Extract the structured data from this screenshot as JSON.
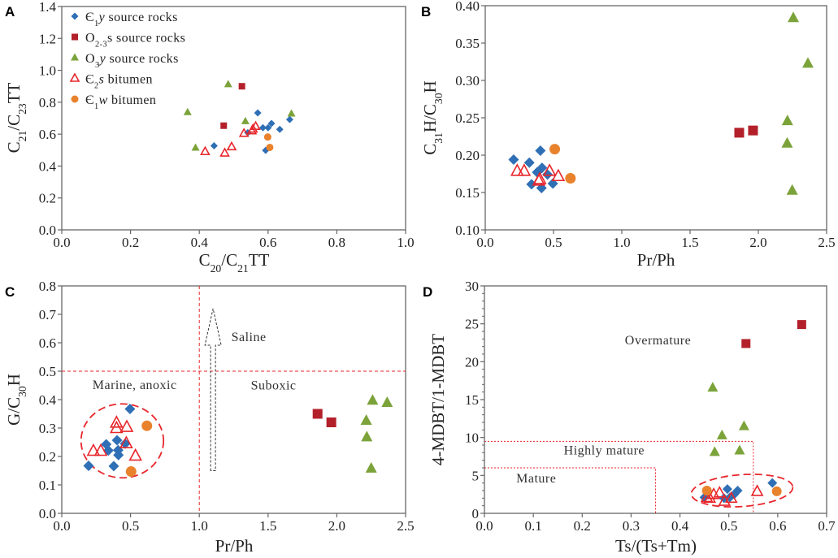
{
  "colors": {
    "E1y": "#2f6fb5",
    "O23s": "#b3202a",
    "O3y": "#7ba33a",
    "E2s": "#e8262b",
    "E1w": "#e9822c",
    "guide": "#e8262b",
    "axis": "#666666"
  },
  "legend": [
    {
      "key": "E1y",
      "marker": "diamond",
      "parts": [
        {
          "t": "Є"
        },
        {
          "t": "1",
          "sub": true
        },
        {
          "t": "y",
          "it": true
        },
        {
          "t": " source rocks"
        }
      ]
    },
    {
      "key": "O23s",
      "marker": "square",
      "parts": [
        {
          "t": "O"
        },
        {
          "t": "2-3",
          "sub": true
        },
        {
          "t": "s  source rocks"
        }
      ]
    },
    {
      "key": "O3y",
      "marker": "triangle",
      "parts": [
        {
          "t": "O"
        },
        {
          "t": "3",
          "sub": true
        },
        {
          "t": "y",
          "it": true
        },
        {
          "t": "  source rocks"
        }
      ]
    },
    {
      "key": "E2s",
      "marker": "open-triangle",
      "parts": [
        {
          "t": "Є"
        },
        {
          "t": "2",
          "sub": true
        },
        {
          "t": "s",
          "it": true
        },
        {
          "t": " bitumen"
        }
      ]
    },
    {
      "key": "E1w",
      "marker": "circle",
      "parts": [
        {
          "t": "Є"
        },
        {
          "t": "1",
          "sub": true
        },
        {
          "t": "w",
          "it": true
        },
        {
          "t": " bitumen"
        }
      ]
    }
  ],
  "chart_data": [
    {
      "panel": "A",
      "type": "scatter",
      "xlabel": [
        {
          "t": "C"
        },
        {
          "t": "20",
          "sub": true
        },
        {
          "t": "/C"
        },
        {
          "t": "21",
          "sub": true
        },
        {
          "t": "TT"
        }
      ],
      "ylabel": [
        {
          "t": "C"
        },
        {
          "t": "21",
          "sub": true
        },
        {
          "t": "/C"
        },
        {
          "t": "23",
          "sub": true
        },
        {
          "t": "TT"
        }
      ],
      "xlim": [
        0,
        1
      ],
      "ylim": [
        0,
        1.4
      ],
      "xticks": [
        [
          0,
          "0.0"
        ],
        [
          0.2,
          "0.2"
        ],
        [
          0.4,
          "0.4"
        ],
        [
          0.6,
          "0.6"
        ],
        [
          0.8,
          "0.8"
        ],
        [
          1,
          "1.0"
        ]
      ],
      "yticks": [
        [
          0,
          "0.0"
        ],
        [
          0.2,
          "0.2"
        ],
        [
          0.4,
          "0.4"
        ],
        [
          0.6,
          "0.6"
        ],
        [
          0.8,
          "0.8"
        ],
        [
          1.0,
          "1.0"
        ],
        [
          1.2,
          "1.2"
        ],
        [
          1.4,
          "1.4"
        ]
      ],
      "legend": "top-left",
      "series": {
        "E1y": [
          [
            0.443,
            0.527
          ],
          [
            0.57,
            0.733
          ],
          [
            0.585,
            0.64
          ],
          [
            0.6,
            0.64
          ],
          [
            0.61,
            0.667
          ],
          [
            0.634,
            0.63
          ],
          [
            0.663,
            0.692
          ],
          [
            0.593,
            0.498
          ],
          [
            0.541,
            0.609
          ]
        ],
        "O23s": [
          [
            0.471,
            0.653
          ],
          [
            0.524,
            0.9
          ]
        ],
        "O3y": [
          [
            0.366,
            0.737
          ],
          [
            0.389,
            0.514
          ],
          [
            0.484,
            0.912
          ],
          [
            0.534,
            0.68
          ],
          [
            0.668,
            0.728
          ]
        ],
        "E2s": [
          [
            0.417,
            0.49
          ],
          [
            0.474,
            0.481
          ],
          [
            0.494,
            0.52
          ],
          [
            0.53,
            0.604
          ],
          [
            0.556,
            0.631
          ],
          [
            0.564,
            0.648
          ],
          [
            0.553,
            0.62
          ]
        ],
        "E1w": [
          [
            0.599,
            0.582
          ],
          [
            0.605,
            0.517
          ]
        ]
      }
    },
    {
      "panel": "B",
      "type": "scatter",
      "xlabel": [
        {
          "t": "Pr/Ph"
        }
      ],
      "ylabel": [
        {
          "t": "C"
        },
        {
          "t": "31",
          "sub": true
        },
        {
          "t": "H/C"
        },
        {
          "t": "30",
          "sub": true
        },
        {
          "t": "H"
        }
      ],
      "xlim": [
        0,
        2.5
      ],
      "ylim": [
        0.1,
        0.4
      ],
      "xticks": [
        [
          0,
          "0.0"
        ],
        [
          0.5,
          "0.5"
        ],
        [
          1,
          "1.0"
        ],
        [
          1.5,
          "1.5"
        ],
        [
          2,
          "2.0"
        ],
        [
          2.5,
          "2.5"
        ]
      ],
      "yticks": [
        [
          0.1,
          "0.10"
        ],
        [
          0.15,
          "0.15"
        ],
        [
          0.2,
          "0.20"
        ],
        [
          0.25,
          "0.25"
        ],
        [
          0.3,
          "0.30"
        ],
        [
          0.35,
          "0.35"
        ],
        [
          0.4,
          "0.40"
        ]
      ],
      "series": {
        "E1y": [
          [
            0.208,
            0.194
          ],
          [
            0.323,
            0.19
          ],
          [
            0.404,
            0.206
          ],
          [
            0.416,
            0.183
          ],
          [
            0.38,
            0.177
          ],
          [
            0.339,
            0.161
          ],
          [
            0.412,
            0.156
          ],
          [
            0.495,
            0.162
          ],
          [
            0.456,
            0.174
          ]
        ],
        "O23s": [
          [
            1.86,
            0.23
          ],
          [
            1.961,
            0.233
          ]
        ],
        "O3y": [
          [
            2.256,
            0.384
          ],
          [
            2.363,
            0.323
          ],
          [
            2.213,
            0.246
          ],
          [
            2.211,
            0.216
          ],
          [
            2.248,
            0.153
          ]
        ],
        "E2s": [
          [
            0.234,
            0.179
          ],
          [
            0.285,
            0.179
          ],
          [
            0.4,
            0.168
          ],
          [
            0.392,
            0.166
          ],
          [
            0.471,
            0.179
          ],
          [
            0.535,
            0.172
          ]
        ],
        "E1w": [
          [
            0.509,
            0.208
          ],
          [
            0.624,
            0.169
          ]
        ]
      }
    },
    {
      "panel": "C",
      "type": "scatter",
      "xlabel": [
        {
          "t": "Pr/Ph"
        }
      ],
      "ylabel": [
        {
          "t": "G/C"
        },
        {
          "t": "30",
          "sub": true
        },
        {
          "t": "H"
        }
      ],
      "xlim": [
        0,
        2.5
      ],
      "ylim": [
        0,
        0.8
      ],
      "xticks": [
        [
          0,
          "0.0"
        ],
        [
          0.5,
          "0.5"
        ],
        [
          1,
          "1.0"
        ],
        [
          1.5,
          "1.5"
        ],
        [
          2,
          "2.0"
        ],
        [
          2.5,
          "2.5"
        ]
      ],
      "yticks": [
        [
          0,
          "0.0"
        ],
        [
          0.1,
          "0.1"
        ],
        [
          0.2,
          "0.2"
        ],
        [
          0.3,
          "0.3"
        ],
        [
          0.4,
          "0.4"
        ],
        [
          0.5,
          "0.5"
        ],
        [
          0.6,
          "0.6"
        ],
        [
          0.7,
          "0.7"
        ],
        [
          0.8,
          "0.8"
        ]
      ],
      "reference_lines": {
        "x": 1.0,
        "y": 0.5
      },
      "arrow": {
        "x": 1.1,
        "from": 0.15,
        "to": 0.72
      },
      "ellipse": {
        "cx": 0.44,
        "cy": 0.255,
        "rx": 0.3,
        "ry": 0.13
      },
      "annotations": [
        {
          "text": "Marine, anoxic",
          "x": 0.53,
          "y": 0.452
        },
        {
          "text": "Suboxic",
          "x": 1.54,
          "y": 0.45
        },
        {
          "text": "Saline",
          "x": 1.36,
          "y": 0.62
        }
      ],
      "series": {
        "E1y": [
          [
            0.195,
            0.167
          ],
          [
            0.323,
            0.243
          ],
          [
            0.339,
            0.221
          ],
          [
            0.402,
            0.257
          ],
          [
            0.41,
            0.222
          ],
          [
            0.412,
            0.205
          ],
          [
            0.378,
            0.166
          ],
          [
            0.496,
            0.367
          ],
          [
            0.461,
            0.245
          ]
        ],
        "O23s": [
          [
            1.86,
            0.35
          ],
          [
            1.96,
            0.32
          ]
        ],
        "O3y": [
          [
            2.26,
            0.398
          ],
          [
            2.366,
            0.39
          ],
          [
            2.214,
            0.327
          ],
          [
            2.218,
            0.269
          ],
          [
            2.25,
            0.159
          ]
        ],
        "E2s": [
          [
            0.23,
            0.22
          ],
          [
            0.284,
            0.22
          ],
          [
            0.398,
            0.319
          ],
          [
            0.398,
            0.3
          ],
          [
            0.473,
            0.304
          ],
          [
            0.469,
            0.247
          ],
          [
            0.536,
            0.203
          ]
        ],
        "E1w": [
          [
            0.619,
            0.308
          ],
          [
            0.504,
            0.147
          ]
        ]
      }
    },
    {
      "panel": "D",
      "type": "scatter",
      "xlabel": [
        {
          "t": "Ts/(Ts+Tm)"
        }
      ],
      "ylabel": [
        {
          "t": "4-MDBT/1-MDBT"
        }
      ],
      "xlim": [
        0,
        0.7
      ],
      "ylim": [
        0,
        30
      ],
      "xticks": [
        [
          0,
          "0.0"
        ],
        [
          0.1,
          "0.1"
        ],
        [
          0.2,
          "0.2"
        ],
        [
          0.3,
          "0.3"
        ],
        [
          0.4,
          "0.4"
        ],
        [
          0.5,
          "0.5"
        ],
        [
          0.6,
          "0.6"
        ],
        [
          0.7,
          "0.7"
        ]
      ],
      "yticks": [
        [
          0,
          "0"
        ],
        [
          5,
          "5"
        ],
        [
          10,
          "10"
        ],
        [
          15,
          "15"
        ],
        [
          20,
          "20"
        ],
        [
          25,
          "25"
        ],
        [
          30,
          "30"
        ]
      ],
      "boxes": [
        {
          "x": 0.35,
          "y": 6
        },
        {
          "x": 0.55,
          "y": 9.5
        }
      ],
      "ellipse": {
        "cx": 0.527,
        "cy": 3.0,
        "rx": 0.104,
        "ry": 2.1
      },
      "annotations": [
        {
          "text": "Overmature",
          "x": 0.355,
          "y": 22.8
        },
        {
          "text": "Highly mature",
          "x": 0.245,
          "y": 8.3
        },
        {
          "text": "Mature",
          "x": 0.106,
          "y": 4.6
        }
      ],
      "series": {
        "E1y": [
          [
            0.589,
            4.0
          ],
          [
            0.497,
            3.2
          ],
          [
            0.518,
            3.0
          ],
          [
            0.511,
            2.5
          ],
          [
            0.45,
            2.1
          ],
          [
            0.49,
            2.0
          ],
          [
            0.502,
            2.1
          ]
        ],
        "O23s": [
          [
            0.535,
            22.4
          ],
          [
            0.649,
            24.9
          ]
        ],
        "O3y": [
          [
            0.467,
            16.6
          ],
          [
            0.531,
            11.5
          ],
          [
            0.486,
            10.3
          ],
          [
            0.471,
            8.1
          ],
          [
            0.522,
            8.3
          ]
        ],
        "E2s": [
          [
            0.455,
            2.1
          ],
          [
            0.469,
            2.5
          ],
          [
            0.481,
            2.7
          ],
          [
            0.491,
            1.6
          ],
          [
            0.505,
            2.0
          ],
          [
            0.558,
            2.9
          ],
          [
            0.461,
            2.0
          ]
        ],
        "E1w": [
          [
            0.455,
            3.0
          ],
          [
            0.598,
            2.9
          ]
        ]
      }
    }
  ]
}
